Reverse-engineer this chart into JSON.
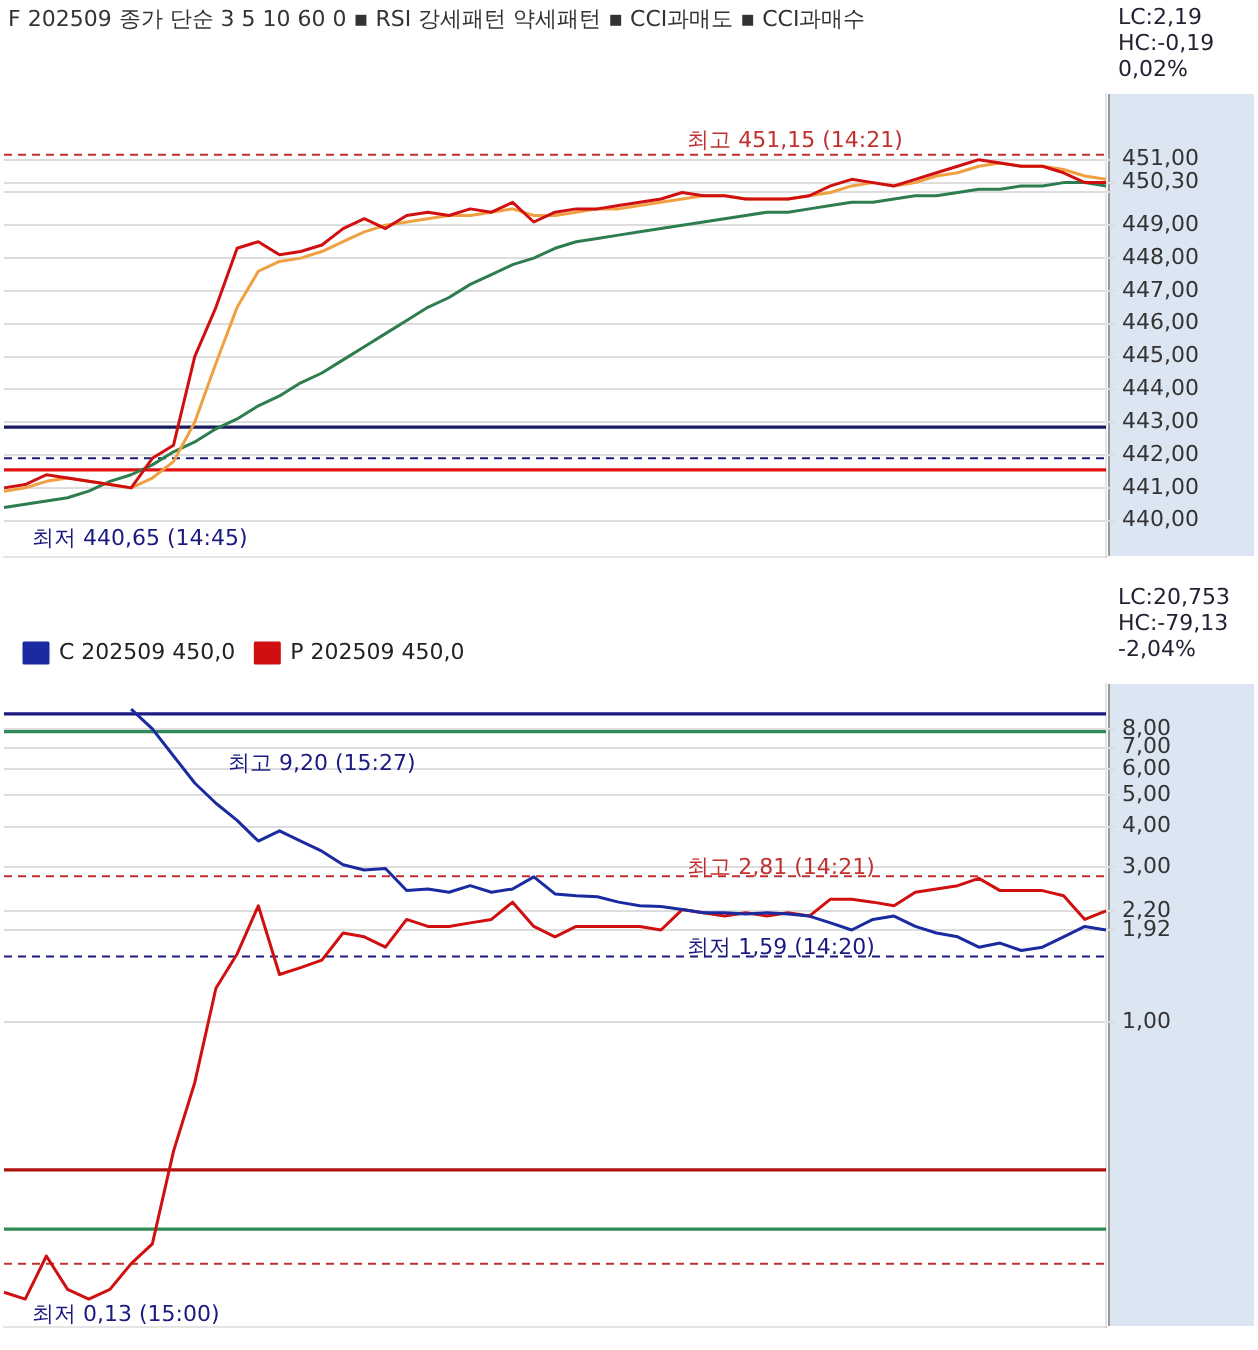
{
  "chart_data": [
    {
      "type": "line",
      "title": "F 202509",
      "subtitle": "종가 단순 3 5 10 60 0  ▪ RSI 강세패턴  약세패턴  ▪ CCI과매도  ▪ CCI과매수",
      "categories": [
        null,
        null,
        null,
        null,
        null,
        null,
        null,
        null,
        null,
        null,
        null,
        null,
        null,
        null,
        null,
        null,
        null,
        null,
        null,
        null,
        null,
        null,
        null,
        null,
        null,
        null,
        null,
        null,
        null,
        null,
        null,
        null,
        null,
        null,
        null,
        null,
        null,
        null,
        null,
        null,
        null,
        null,
        null,
        null,
        null,
        null,
        null,
        null,
        null,
        null,
        null,
        null,
        null
      ],
      "series": [
        {
          "color": "#d01010",
          "values": [
            441.0,
            441.1,
            441.4,
            441.3,
            441.2,
            441.1,
            441.0,
            441.9,
            442.3,
            445.0,
            446.5,
            448.3,
            448.5,
            448.1,
            448.2,
            448.4,
            448.9,
            449.2,
            448.9,
            449.3,
            449.4,
            449.3,
            449.5,
            449.4,
            449.7,
            449.1,
            449.4,
            449.5,
            449.5,
            449.6,
            449.7,
            449.8,
            450.0,
            449.9,
            449.9,
            449.8,
            449.8,
            449.8,
            449.9,
            450.2,
            450.4,
            450.3,
            450.2,
            450.4,
            450.6,
            450.8,
            451.0,
            450.9,
            450.8,
            450.8,
            450.6,
            450.3,
            450.3
          ]
        },
        {
          "color": "#f0a040",
          "values": [
            440.9,
            441.0,
            441.2,
            441.3,
            441.2,
            441.1,
            441.0,
            441.3,
            441.8,
            443.0,
            444.8,
            446.5,
            447.6,
            447.9,
            448.0,
            448.2,
            448.5,
            448.8,
            449.0,
            449.1,
            449.2,
            449.3,
            449.3,
            449.4,
            449.5,
            449.3,
            449.3,
            449.4,
            449.5,
            449.5,
            449.6,
            449.7,
            449.8,
            449.9,
            449.9,
            449.8,
            449.8,
            449.8,
            449.9,
            450.0,
            450.2,
            450.3,
            450.2,
            450.3,
            450.5,
            450.6,
            450.8,
            450.9,
            450.8,
            450.8,
            450.7,
            450.5,
            450.4
          ]
        },
        {
          "color": "#2e7d4f",
          "values": [
            440.4,
            440.5,
            440.6,
            440.7,
            440.9,
            441.2,
            441.4,
            441.7,
            442.1,
            442.4,
            442.8,
            443.1,
            443.5,
            443.8,
            444.2,
            444.5,
            444.9,
            445.3,
            445.7,
            446.1,
            446.5,
            446.8,
            447.2,
            447.5,
            447.8,
            448.0,
            448.3,
            448.5,
            448.6,
            448.7,
            448.8,
            448.9,
            449.0,
            449.1,
            449.2,
            449.3,
            449.4,
            449.4,
            449.5,
            449.6,
            449.7,
            449.7,
            449.8,
            449.9,
            449.9,
            450.0,
            450.1,
            450.1,
            450.2,
            450.2,
            450.3,
            450.3,
            450.2
          ]
        }
      ],
      "ylim": [
        438.9,
        453
      ],
      "yticks": [
        {
          "value": 440,
          "label": "440,00"
        },
        {
          "value": 441,
          "label": "441,00"
        },
        {
          "value": 442,
          "label": "442,00"
        },
        {
          "value": 443,
          "label": "443,00"
        },
        {
          "value": 444,
          "label": "444,00"
        },
        {
          "value": 445,
          "label": "445,00"
        },
        {
          "value": 446,
          "label": "446,00"
        },
        {
          "value": 447,
          "label": "447,00"
        },
        {
          "value": 448,
          "label": "448,00"
        },
        {
          "value": 449,
          "label": "449,00"
        },
        {
          "value": 450,
          "label": null
        },
        {
          "value": 450.3,
          "label": "450,30"
        },
        {
          "value": 451,
          "label": "451,00"
        }
      ],
      "grid": "y",
      "legend": false,
      "tick_labels": "y",
      "ref_lines": [
        {
          "axis": "y",
          "value": 451.15,
          "label": "최고 451,15 (14:21)",
          "color": "#c03030",
          "line_style": "dashed"
        },
        {
          "axis": "y",
          "value": 442.85,
          "label": null,
          "color": "#1a1a60",
          "line_style": "solid"
        },
        {
          "axis": "y",
          "value": 441.9,
          "label": null,
          "color": "#1a1a80",
          "line_style": "dashed"
        },
        {
          "axis": "y",
          "value": 441.55,
          "label": null,
          "color": "#e01010",
          "line_style": "solid"
        }
      ],
      "annotations": [
        "최저 440,65 (14:45)",
        "LC:2,19",
        "HC:-0,19",
        "0,02%"
      ]
    },
    {
      "type": "line",
      "log": true,
      "categories": [
        null,
        null,
        null,
        null,
        null,
        null,
        null,
        null,
        null,
        null,
        null,
        null,
        null,
        null,
        null,
        null,
        null,
        null,
        null,
        null,
        null,
        null,
        null,
        null,
        null,
        null,
        null,
        null,
        null,
        null,
        null,
        null,
        null,
        null,
        null,
        null,
        null,
        null,
        null,
        null,
        null,
        null,
        null,
        null,
        null,
        null,
        null,
        null,
        null,
        null,
        null,
        null,
        null
      ],
      "series": [
        {
          "name": "C 202509 450,0",
          "color": "#1a2aa0",
          "values": [
            null,
            null,
            null,
            null,
            null,
            null,
            9.2,
            8.0,
            6.6,
            5.45,
            4.72,
            4.18,
            3.61,
            3.88,
            3.61,
            3.36,
            3.05,
            2.94,
            2.97,
            2.54,
            2.57,
            2.51,
            2.63,
            2.51,
            2.57,
            2.8,
            2.48,
            2.45,
            2.43,
            2.34,
            2.28,
            2.27,
            2.22,
            2.17,
            2.17,
            2.15,
            2.17,
            2.15,
            2.12,
            2.02,
            1.92,
            2.07,
            2.12,
            1.97,
            1.88,
            1.83,
            1.7,
            1.75,
            1.66,
            1.7,
            1.83,
            1.97,
            1.92
          ]
        },
        {
          "name": "P 202509 450,0",
          "color": "#d01010",
          "values": [
            0.147,
            0.14,
            0.19,
            0.15,
            0.14,
            0.15,
            0.18,
            0.207,
            0.4,
            0.65,
            1.27,
            1.62,
            2.28,
            1.4,
            1.47,
            1.55,
            1.88,
            1.83,
            1.7,
            2.07,
            1.97,
            1.97,
            2.02,
            2.07,
            2.34,
            1.97,
            1.83,
            1.97,
            1.97,
            1.97,
            1.97,
            1.92,
            2.22,
            2.17,
            2.12,
            2.17,
            2.12,
            2.17,
            2.12,
            2.39,
            2.39,
            2.34,
            2.28,
            2.51,
            2.57,
            2.63,
            2.77,
            2.54,
            2.54,
            2.54,
            2.45,
            2.07,
            2.2
          ]
        }
      ],
      "ylim": [
        0.115,
        11
      ],
      "yticks": [
        {
          "value": 1,
          "label": "1,00"
        },
        {
          "value": 1.92,
          "label": "1,92"
        },
        {
          "value": 2.2,
          "label": "2,20"
        },
        {
          "value": 3,
          "label": "3,00"
        },
        {
          "value": 4,
          "label": "4,00"
        },
        {
          "value": 5,
          "label": "5,00"
        },
        {
          "value": 6,
          "label": "6,00"
        },
        {
          "value": 7,
          "label": "7,00"
        },
        {
          "value": 8,
          "label": "8,00"
        }
      ],
      "grid": "y",
      "legend": "top left",
      "tick_labels": "y",
      "ref_lines": [
        {
          "axis": "y",
          "value": 8.9,
          "label": null,
          "color": "#1a1a80",
          "line_style": "solid"
        },
        {
          "axis": "y",
          "value": 7.85,
          "label": null,
          "color": "#2e8b57",
          "line_style": "solid"
        },
        {
          "axis": "y",
          "value": 2.81,
          "label": "최고 2,81 (14:21)",
          "color": "#c03030",
          "line_style": "dashed"
        },
        {
          "axis": "y",
          "value": 1.59,
          "label": "최저 1,59 (14:20)",
          "color": "#1a1a80",
          "line_style": "dashed"
        },
        {
          "axis": "y",
          "value": 0.35,
          "label": null,
          "color": "#b01010",
          "line_style": "solid"
        },
        {
          "axis": "y",
          "value": 0.23,
          "label": null,
          "color": "#2e8b57",
          "line_style": "solid"
        },
        {
          "axis": "y",
          "value": 0.18,
          "label": null,
          "color": "#c03030",
          "line_style": "dashed"
        }
      ],
      "annotations": [
        "최고 9,20 (15:27)",
        "최저 0,13 (15:00)",
        "LC:20,753",
        "HC:-79,13",
        "-2,04%"
      ]
    }
  ]
}
